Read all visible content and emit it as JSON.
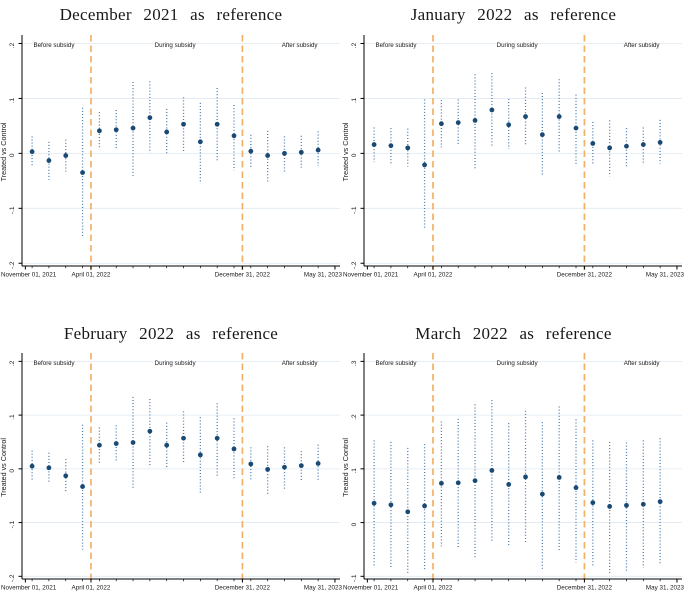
{
  "colors": {
    "point": "#1a4a74",
    "ci": "#4a7cab",
    "refline": "#f2b166",
    "grid": "#dfeaf2",
    "axis": "#000000",
    "text": "#1a1a1a"
  },
  "chart_data": [
    {
      "type": "scatter",
      "title": "December 2021 as reference",
      "ylabel": "Treated vs Control",
      "xlabel": "",
      "grid": true,
      "legend": false,
      "ylim": [
        -0.205,
        0.21
      ],
      "xlim": [
        0.4,
        19.3
      ],
      "yticks": [
        {
          "v": -0.2,
          "label": "-.2"
        },
        {
          "v": -0.1,
          "label": "-.1"
        },
        {
          "v": 0,
          "label": "0"
        },
        {
          "v": 0.1,
          "label": ".1"
        },
        {
          "v": 0.2,
          "label": ".2"
        }
      ],
      "xticks": [
        {
          "x": 0.6,
          "label": "November 01, 2021",
          "anchor": "start"
        },
        {
          "x": 4.5,
          "label": "April 01, 2022",
          "anchor": "middle"
        },
        {
          "x": 13.5,
          "label": "December 31, 2022",
          "anchor": "middle"
        },
        {
          "x": 19.0,
          "label": "May 31, 2023",
          "anchor": "end"
        }
      ],
      "reference_lines": [
        4.5,
        13.5
      ],
      "annotations": [
        {
          "x": 2.3,
          "label": "Before subsidy"
        },
        {
          "x": 9.5,
          "label": "During subsidy"
        },
        {
          "x": 16.9,
          "label": "After subsidy"
        }
      ],
      "points": [
        [
          1,
          0.003,
          -0.025,
          0.031
        ],
        [
          2,
          -0.013,
          -0.048,
          0.021
        ],
        [
          3,
          -0.004,
          -0.033,
          0.025
        ],
        [
          4,
          -0.035,
          -0.152,
          0.083
        ],
        [
          5,
          0.041,
          0.007,
          0.075
        ],
        [
          6,
          0.043,
          0.006,
          0.079
        ],
        [
          7,
          0.046,
          -0.041,
          0.13
        ],
        [
          8,
          0.065,
          0.001,
          0.131
        ],
        [
          9,
          0.039,
          0.0,
          0.081
        ],
        [
          10,
          0.053,
          0.004,
          0.102
        ],
        [
          11,
          0.021,
          -0.052,
          0.092
        ],
        [
          12,
          0.053,
          -0.014,
          0.119
        ],
        [
          13,
          0.032,
          -0.031,
          0.088
        ],
        [
          14,
          0.004,
          -0.026,
          0.034
        ],
        [
          15,
          -0.004,
          -0.052,
          0.041
        ],
        [
          16,
          0.0,
          -0.034,
          0.031
        ],
        [
          17,
          0.002,
          -0.026,
          0.032
        ],
        [
          18,
          0.006,
          -0.023,
          0.04
        ]
      ]
    },
    {
      "type": "scatter",
      "title": "January 2022 as reference",
      "ylabel": "Treated vs Control",
      "xlabel": "",
      "grid": true,
      "legend": false,
      "ylim": [
        -0.205,
        0.21
      ],
      "xlim": [
        0.4,
        19.3
      ],
      "yticks": [
        {
          "v": -0.2,
          "label": "-.2"
        },
        {
          "v": -0.1,
          "label": "-.1"
        },
        {
          "v": 0,
          "label": "0"
        },
        {
          "v": 0.1,
          "label": ".1"
        },
        {
          "v": 0.2,
          "label": ".2"
        }
      ],
      "xticks": [
        {
          "x": 0.6,
          "label": "November 01, 2021",
          "anchor": "start"
        },
        {
          "x": 4.5,
          "label": "April 01, 2022",
          "anchor": "middle"
        },
        {
          "x": 13.5,
          "label": "December 31, 2022",
          "anchor": "middle"
        },
        {
          "x": 19.0,
          "label": "May 31, 2023",
          "anchor": "end"
        }
      ],
      "reference_lines": [
        4.5,
        13.5
      ],
      "annotations": [
        {
          "x": 2.3,
          "label": "Before subsidy"
        },
        {
          "x": 9.5,
          "label": "During subsidy"
        },
        {
          "x": 16.9,
          "label": "After subsidy"
        }
      ],
      "points": [
        [
          1,
          0.016,
          -0.016,
          0.047
        ],
        [
          2,
          0.014,
          -0.02,
          0.046
        ],
        [
          3,
          0.01,
          -0.024,
          0.045
        ],
        [
          4,
          -0.021,
          -0.136,
          0.098
        ],
        [
          5,
          0.054,
          0.011,
          0.097
        ],
        [
          6,
          0.056,
          0.016,
          0.098
        ],
        [
          7,
          0.06,
          -0.027,
          0.144
        ],
        [
          8,
          0.079,
          0.011,
          0.146
        ],
        [
          9,
          0.052,
          0.008,
          0.099
        ],
        [
          10,
          0.067,
          0.016,
          0.12
        ],
        [
          11,
          0.034,
          -0.039,
          0.11
        ],
        [
          12,
          0.067,
          0.0,
          0.135
        ],
        [
          13,
          0.046,
          -0.019,
          0.107
        ],
        [
          14,
          0.018,
          -0.021,
          0.057
        ],
        [
          15,
          0.01,
          -0.042,
          0.06
        ],
        [
          16,
          0.013,
          -0.027,
          0.046
        ],
        [
          17,
          0.016,
          -0.021,
          0.047
        ],
        [
          18,
          0.02,
          -0.019,
          0.061
        ]
      ]
    },
    {
      "type": "scatter",
      "title": "February 2022 as reference",
      "ylabel": "Treated vs Control",
      "xlabel": "",
      "grid": true,
      "legend": false,
      "ylim": [
        -0.205,
        0.21
      ],
      "xlim": [
        0.4,
        19.3
      ],
      "yticks": [
        {
          "v": -0.2,
          "label": "-.2"
        },
        {
          "v": -0.1,
          "label": "-.1"
        },
        {
          "v": 0,
          "label": "0"
        },
        {
          "v": 0.1,
          "label": ".1"
        },
        {
          "v": 0.2,
          "label": ".2"
        }
      ],
      "xticks": [
        {
          "x": 0.6,
          "label": "November 01, 2021",
          "anchor": "start"
        },
        {
          "x": 4.5,
          "label": "April 01, 2022",
          "anchor": "middle"
        },
        {
          "x": 13.5,
          "label": "December 31, 2022",
          "anchor": "middle"
        },
        {
          "x": 19.0,
          "label": "May 31, 2023",
          "anchor": "end"
        }
      ],
      "reference_lines": [
        4.5,
        13.5
      ],
      "annotations": [
        {
          "x": 2.3,
          "label": "Before subsidy"
        },
        {
          "x": 9.5,
          "label": "During subsidy"
        },
        {
          "x": 16.9,
          "label": "After subsidy"
        }
      ],
      "points": [
        [
          1,
          0.005,
          -0.024,
          0.034
        ],
        [
          2,
          0.002,
          -0.027,
          0.03
        ],
        [
          3,
          -0.013,
          -0.044,
          0.018
        ],
        [
          4,
          -0.033,
          -0.15,
          0.082
        ],
        [
          5,
          0.044,
          0.01,
          0.077
        ],
        [
          6,
          0.047,
          0.014,
          0.081
        ],
        [
          7,
          0.049,
          -0.036,
          0.134
        ],
        [
          8,
          0.07,
          0.004,
          0.13
        ],
        [
          9,
          0.044,
          0.001,
          0.086
        ],
        [
          10,
          0.057,
          0.01,
          0.107
        ],
        [
          11,
          0.026,
          -0.047,
          0.096
        ],
        [
          12,
          0.057,
          -0.014,
          0.122
        ],
        [
          13,
          0.037,
          -0.02,
          0.094
        ],
        [
          14,
          0.009,
          -0.023,
          0.04
        ],
        [
          15,
          -0.001,
          -0.049,
          0.042
        ],
        [
          16,
          0.003,
          -0.039,
          0.04
        ],
        [
          17,
          0.006,
          -0.024,
          0.033
        ],
        [
          18,
          0.01,
          -0.023,
          0.045
        ]
      ]
    },
    {
      "type": "scatter",
      "title": "March 2022 as reference",
      "ylabel": "Treated vs Control",
      "xlabel": "",
      "grid": true,
      "legend": false,
      "ylim": [
        -0.105,
        0.31
      ],
      "xlim": [
        0.4,
        19.3
      ],
      "yticks": [
        {
          "v": -0.1,
          "label": "-.1"
        },
        {
          "v": 0,
          "label": "0"
        },
        {
          "v": 0.1,
          "label": ".1"
        },
        {
          "v": 0.2,
          "label": ".2"
        },
        {
          "v": 0.3,
          "label": ".3"
        }
      ],
      "xticks": [
        {
          "x": 0.6,
          "label": "November 01, 2021",
          "anchor": "start"
        },
        {
          "x": 4.5,
          "label": "April 01, 2022",
          "anchor": "middle"
        },
        {
          "x": 13.5,
          "label": "December 31, 2022",
          "anchor": "middle"
        },
        {
          "x": 19.0,
          "label": "May 31, 2023",
          "anchor": "end"
        }
      ],
      "reference_lines": [
        4.5,
        13.5
      ],
      "annotations": [
        {
          "x": 2.3,
          "label": "Before subsidy"
        },
        {
          "x": 9.5,
          "label": "During subsidy"
        },
        {
          "x": 16.9,
          "label": "After subsidy"
        }
      ],
      "points": [
        [
          1,
          0.036,
          -0.08,
          0.153
        ],
        [
          2,
          0.033,
          -0.085,
          0.15
        ],
        [
          3,
          0.02,
          -0.096,
          0.139
        ],
        [
          4,
          0.031,
          -0.09,
          0.146
        ],
        [
          5,
          0.073,
          -0.044,
          0.188
        ],
        [
          6,
          0.074,
          -0.046,
          0.193
        ],
        [
          7,
          0.078,
          -0.065,
          0.22
        ],
        [
          8,
          0.097,
          -0.034,
          0.228
        ],
        [
          9,
          0.071,
          -0.044,
          0.185
        ],
        [
          10,
          0.085,
          -0.038,
          0.208
        ],
        [
          11,
          0.053,
          -0.089,
          0.187
        ],
        [
          12,
          0.084,
          -0.054,
          0.216
        ],
        [
          13,
          0.065,
          -0.074,
          0.192
        ],
        [
          14,
          0.037,
          -0.081,
          0.153
        ],
        [
          15,
          0.03,
          -0.095,
          0.15
        ],
        [
          16,
          0.032,
          -0.09,
          0.149
        ],
        [
          17,
          0.034,
          -0.084,
          0.153
        ],
        [
          18,
          0.039,
          -0.076,
          0.157
        ]
      ]
    }
  ]
}
